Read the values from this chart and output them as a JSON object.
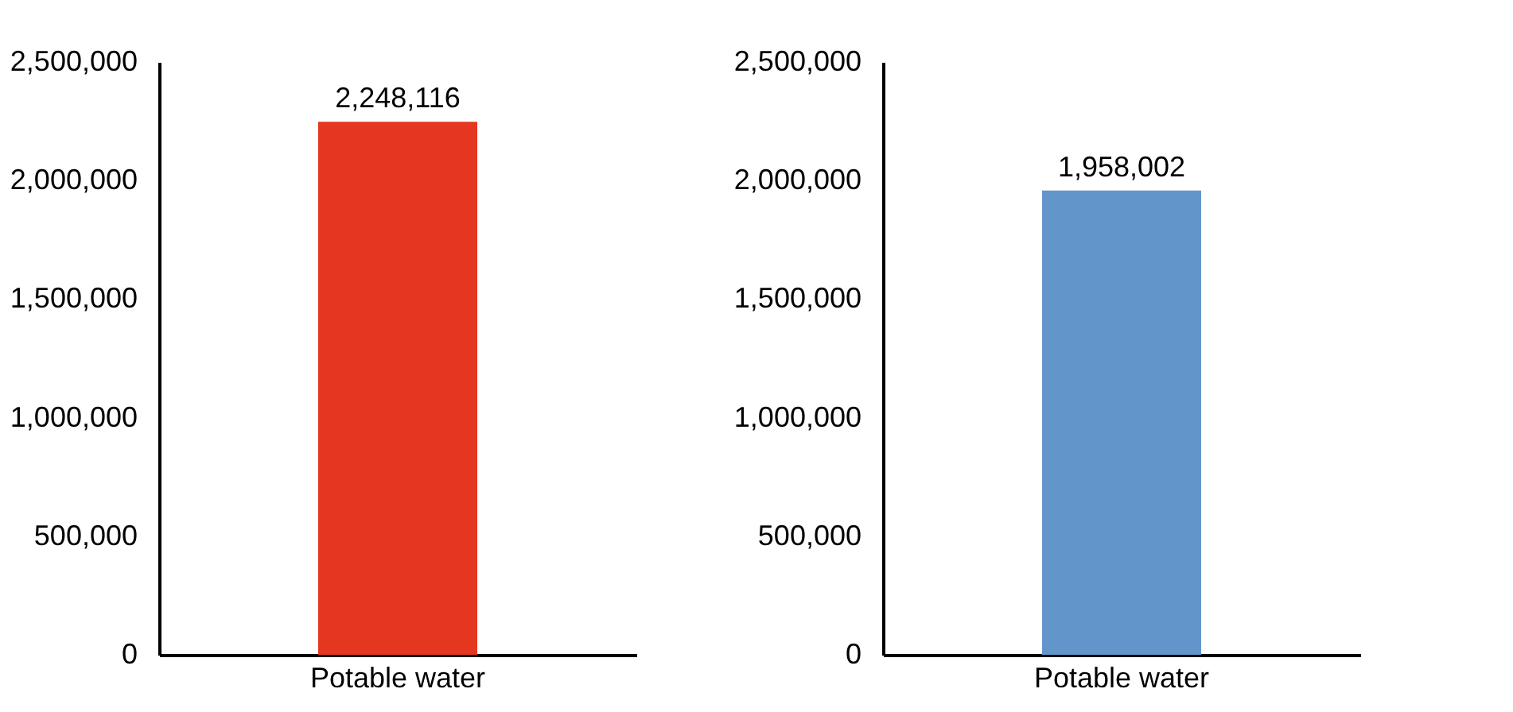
{
  "chart_data": [
    {
      "type": "bar",
      "categories": [
        "Potable water"
      ],
      "values": [
        2248116
      ],
      "value_labels": [
        "2,248,116"
      ],
      "color": "#e5361f",
      "ylim": [
        0,
        2500000
      ],
      "yticks": [
        0,
        {
          "value": 500000,
          "label": "500,000"
        },
        {
          "value": 1000000,
          "label": "1,000,000"
        },
        {
          "value": 1500000,
          "label": "1,500,000"
        },
        {
          "value": 2000000,
          "label": "2,000,000"
        },
        {
          "value": 2500000,
          "label": "2,500,000"
        }
      ],
      "grid": false
    },
    {
      "type": "bar",
      "categories": [
        "Potable water"
      ],
      "values": [
        1958002
      ],
      "value_labels": [
        "1,958,002"
      ],
      "color": "#6295c9",
      "ylim": [
        0,
        2500000
      ],
      "yticks": [
        0,
        {
          "value": 500000,
          "label": "500,000"
        },
        {
          "value": 1000000,
          "label": "1,000,000"
        },
        {
          "value": 1500000,
          "label": "1,500,000"
        },
        {
          "value": 2000000,
          "label": "2,000,000"
        },
        {
          "value": 2500000,
          "label": "2,500,000"
        }
      ],
      "grid": false
    }
  ]
}
